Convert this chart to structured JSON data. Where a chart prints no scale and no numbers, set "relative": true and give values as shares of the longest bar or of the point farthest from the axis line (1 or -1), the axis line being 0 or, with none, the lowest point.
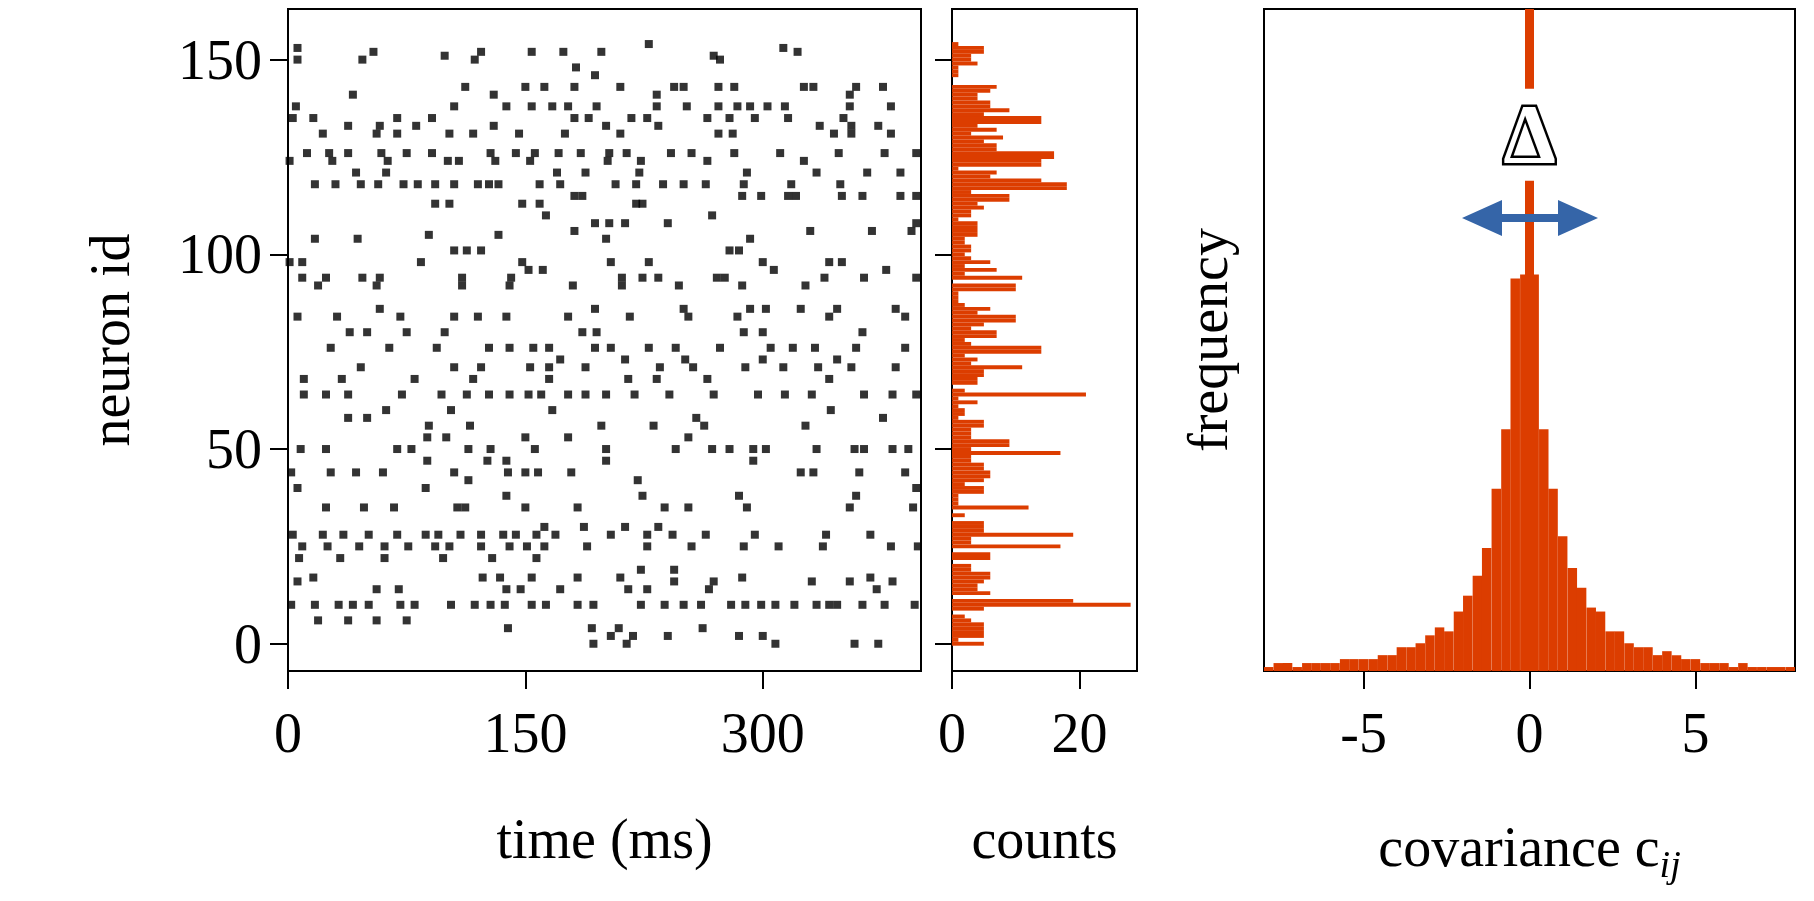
{
  "chart_data": [
    {
      "type": "scatter",
      "xlabel": "time (ms)",
      "ylabel": "neuron id",
      "xlim": [
        0,
        400
      ],
      "xticks": [
        0,
        150,
        300
      ],
      "ylim": [
        -7,
        163
      ],
      "yticks": [
        0,
        50,
        100,
        150
      ],
      "color": "#000000",
      "marker": "square",
      "series": [
        {
          "x": [
            228
          ],
          "values": [
            154
          ]
        },
        {
          "x": [
            6,
            313
          ],
          "values": [
            153,
            153
          ]
        },
        {
          "x": [
            54,
            122,
            154,
            174,
            198,
            322
          ],
          "values": [
            152,
            152,
            152,
            152,
            152,
            152
          ]
        },
        {
          "x": [
            99,
            269
          ],
          "values": [
            151,
            151
          ]
        },
        {
          "x": [
            6,
            47,
            118,
            273
          ],
          "values": [
            150,
            150,
            150,
            150
          ]
        },
        {
          "x": [
            182
          ],
          "values": [
            148
          ]
        },
        {
          "x": [
            194
          ],
          "values": [
            146
          ]
        },
        {
          "x": [
            112,
            150,
            162,
            181,
            210,
            244,
            250,
            272,
            282,
            326,
            332,
            359,
            376
          ],
          "values": [
            143,
            143,
            143,
            143,
            143,
            143,
            143,
            143,
            143,
            143,
            143,
            143,
            143
          ]
        },
        {
          "x": [
            41,
            130,
            233,
            355
          ],
          "values": [
            141,
            141,
            141,
            141
          ]
        },
        {
          "x": [
            5,
            105,
            138,
            154,
            167,
            177,
            195,
            233,
            252,
            272,
            284,
            292,
            303,
            314,
            355,
            381
          ],
          "values": [
            138,
            138,
            138,
            138,
            138,
            138,
            138,
            138,
            138,
            138,
            138,
            138,
            138,
            138,
            138,
            138
          ]
        },
        {
          "x": [
            3,
            16,
            69,
            91,
            181,
            190,
            217,
            227,
            265,
            279,
            295,
            316,
            351
          ],
          "values": [
            135,
            135,
            135,
            135,
            135,
            135,
            135,
            135,
            135,
            135,
            135,
            135,
            135
          ]
        },
        {
          "x": [
            38,
            58,
            81,
            130,
            201,
            234,
            336,
            356,
            373
          ],
          "values": [
            133,
            133,
            133,
            133,
            133,
            133,
            133,
            133,
            133
          ]
        },
        {
          "x": [
            22,
            56,
            69,
            102,
            117,
            146,
            175,
            210,
            272,
            281,
            345,
            356,
            381
          ],
          "values": [
            131,
            131,
            131,
            131,
            131,
            131,
            131,
            131,
            131,
            131,
            131,
            131,
            131
          ]
        },
        {
          "x": [
            12,
            26,
            38,
            59,
            75,
            91,
            128,
            144,
            156,
            171,
            185,
            203,
            214,
            242,
            255,
            282,
            311,
            348,
            377,
            397
          ],
          "values": [
            126,
            126,
            126,
            126,
            126,
            126,
            126,
            126,
            126,
            126,
            126,
            126,
            126,
            126,
            126,
            126,
            126,
            126,
            126,
            126
          ]
        },
        {
          "x": [
            1,
            28,
            63,
            101,
            108,
            131,
            153,
            202,
            223,
            265,
            326
          ],
          "values": [
            124,
            124,
            124,
            124,
            124,
            124,
            124,
            124,
            124,
            124,
            124
          ]
        },
        {
          "x": [
            43,
            62,
            170,
            188,
            222,
            290,
            334,
            366,
            387
          ],
          "values": [
            121,
            121,
            121,
            121,
            121,
            121,
            121,
            121,
            121
          ]
        },
        {
          "x": [
            17,
            30,
            46,
            57,
            73,
            82,
            93,
            105,
            120,
            127,
            133,
            159,
            172,
            207,
            220,
            237,
            250,
            264,
            288,
            318,
            349
          ],
          "values": [
            118,
            118,
            118,
            118,
            118,
            118,
            118,
            118,
            118,
            118,
            118,
            118,
            118,
            118,
            118,
            118,
            118,
            118,
            118,
            118,
            118
          ]
        },
        {
          "x": [
            181,
            186,
            287,
            299,
            316,
            321,
            350,
            363,
            387,
            397
          ],
          "values": [
            115,
            115,
            115,
            115,
            115,
            115,
            115,
            115,
            115,
            115
          ]
        },
        {
          "x": [
            93,
            102,
            148,
            159,
            220,
            224
          ],
          "values": [
            113,
            113,
            113,
            113,
            113,
            113
          ]
        },
        {
          "x": [
            163,
            268
          ],
          "values": [
            110,
            110
          ]
        },
        {
          "x": [
            194,
            203,
            213,
            240,
            397
          ],
          "values": [
            108,
            108,
            108,
            108,
            108
          ]
        },
        {
          "x": [
            181,
            330,
            369,
            394
          ],
          "values": [
            106,
            106,
            106,
            106
          ]
        },
        {
          "x": [
            89,
            133
          ],
          "values": [
            105,
            105
          ]
        },
        {
          "x": [
            17,
            44,
            201,
            292
          ],
          "values": [
            104,
            104,
            104,
            104
          ]
        },
        {
          "x": [
            105,
            113,
            122,
            279,
            285
          ],
          "values": [
            101,
            101,
            101,
            101,
            101
          ]
        },
        {
          "x": [
            1,
            9,
            84,
            148,
            204,
            228,
            300,
            342,
            350
          ],
          "values": [
            98,
            98,
            98,
            98,
            98,
            98,
            98,
            98,
            98
          ]
        },
        {
          "x": [
            152,
            161,
            307,
            378
          ],
          "values": [
            96,
            96,
            96,
            96
          ]
        },
        {
          "x": [
            9,
            24,
            47,
            58,
            110,
            141,
            211,
            224,
            234,
            271,
            276,
            339,
            364,
            397
          ],
          "values": [
            94,
            94,
            94,
            94,
            94,
            94,
            94,
            94,
            94,
            94,
            94,
            94,
            94,
            94
          ]
        },
        {
          "x": [
            19,
            56,
            110,
            140,
            180,
            211,
            247,
            287,
            327
          ],
          "values": [
            92,
            92,
            92,
            92,
            92,
            92,
            92,
            92,
            92
          ]
        },
        {
          "x": [
            58,
            194,
            250,
            292,
            302,
            324,
            347,
            384
          ],
          "values": [
            86,
            86,
            86,
            86,
            86,
            86,
            86,
            86
          ]
        },
        {
          "x": [
            6,
            31,
            71,
            105,
            120,
            138,
            177,
            216,
            253,
            284,
            342,
            390
          ],
          "values": [
            84,
            84,
            84,
            84,
            84,
            84,
            84,
            84,
            84,
            84,
            84,
            84
          ]
        },
        {
          "x": [
            39,
            50,
            75,
            99,
            186,
            195,
            288,
            300,
            363
          ],
          "values": [
            80,
            80,
            80,
            80,
            80,
            80,
            80,
            80,
            80
          ]
        },
        {
          "x": [
            27,
            64,
            94,
            127,
            140,
            155,
            165,
            194,
            204,
            228,
            245,
            273,
            305,
            319,
            333,
            359,
            390
          ],
          "values": [
            76,
            76,
            76,
            76,
            76,
            76,
            76,
            76,
            76,
            76,
            76,
            76,
            76,
            76,
            76,
            76,
            76
          ]
        },
        {
          "x": [
            172,
            213,
            251,
            300,
            347
          ],
          "values": [
            73,
            73,
            73,
            73,
            73
          ]
        },
        {
          "x": [
            46,
            105,
            122,
            153,
            165,
            188,
            235,
            256,
            289,
            313,
            335,
            356,
            384
          ],
          "values": [
            71,
            71,
            71,
            71,
            71,
            71,
            71,
            71,
            71,
            71,
            71,
            71,
            71
          ]
        },
        {
          "x": [
            10,
            34,
            80,
            117,
            165,
            215,
            233,
            265,
            342
          ],
          "values": [
            68,
            68,
            68,
            68,
            68,
            68,
            68,
            68,
            68
          ]
        },
        {
          "x": [
            10,
            24,
            38,
            72,
            97,
            113,
            127,
            140,
            152,
            160,
            177,
            188,
            201,
            219,
            241,
            269,
            297,
            314,
            331,
            364,
            382,
            397
          ],
          "values": [
            64,
            64,
            64,
            64,
            64,
            64,
            64,
            64,
            64,
            64,
            64,
            64,
            64,
            64,
            64,
            64,
            64,
            64,
            64,
            64,
            64,
            64
          ]
        },
        {
          "x": [
            62,
            103,
            167,
            343
          ],
          "values": [
            60,
            60,
            60,
            60
          ]
        },
        {
          "x": [
            38,
            50,
            258,
            376
          ],
          "values": [
            58,
            58,
            58,
            58
          ]
        },
        {
          "x": [
            89,
            115,
            198,
            231,
            263,
            327
          ],
          "values": [
            56,
            56,
            56,
            56,
            56,
            56
          ]
        },
        {
          "x": [
            88,
            100,
            150,
            177,
            253
          ],
          "values": [
            53,
            53,
            53,
            53,
            53
          ]
        },
        {
          "x": [
            8,
            24,
            69,
            78,
            114,
            128,
            156,
            201,
            245,
            268,
            279,
            294,
            302,
            334,
            358,
            364,
            382,
            392
          ],
          "values": [
            50,
            50,
            50,
            50,
            50,
            50,
            50,
            50,
            50,
            50,
            50,
            50,
            50,
            50,
            50,
            50,
            50,
            50
          ]
        },
        {
          "x": [
            88,
            126,
            138,
            201,
            294
          ],
          "values": [
            47,
            47,
            47,
            47,
            47
          ]
        },
        {
          "x": [
            2,
            27,
            43,
            60,
            105,
            139,
            150,
            158,
            179,
            324,
            332,
            361,
            390
          ],
          "values": [
            44,
            44,
            44,
            44,
            44,
            44,
            44,
            44,
            44,
            44,
            44,
            44,
            44
          ]
        },
        {
          "x": [
            114,
            221
          ],
          "values": [
            42,
            42
          ]
        },
        {
          "x": [
            6,
            87,
            397
          ],
          "values": [
            40,
            40,
            40
          ]
        },
        {
          "x": [
            138,
            224,
            285,
            359
          ],
          "values": [
            38,
            38,
            38,
            38
          ]
        },
        {
          "x": [
            24,
            48,
            67,
            107,
            112,
            150,
            183,
            238,
            253,
            290,
            355,
            395
          ],
          "values": [
            35,
            35,
            35,
            35,
            35,
            35,
            35,
            35,
            35,
            35,
            35,
            35
          ]
        },
        {
          "x": [
            162,
            187,
            213,
            234
          ],
          "values": [
            30,
            30,
            30,
            30
          ]
        },
        {
          "x": [
            3,
            22,
            35,
            51,
            69,
            87,
            95,
            109,
            122,
            136,
            144,
            157,
            169,
            204,
            227,
            243,
            264,
            295,
            340,
            368
          ],
          "values": [
            28,
            28,
            28,
            28,
            28,
            28,
            28,
            28,
            28,
            28,
            28,
            28,
            28,
            28,
            28,
            28,
            28,
            28,
            28,
            28
          ]
        },
        {
          "x": [
            9,
            25,
            45,
            61,
            76,
            93,
            102,
            122,
            140,
            151,
            162,
            189,
            227,
            255,
            288,
            310,
            338,
            381,
            398
          ],
          "values": [
            25,
            25,
            25,
            25,
            25,
            25,
            25,
            25,
            25,
            25,
            25,
            25,
            25,
            25,
            25,
            25,
            25,
            25,
            25
          ]
        },
        {
          "x": [
            7,
            33,
            61,
            98,
            129,
            157
          ],
          "values": [
            22,
            22,
            22,
            22,
            22,
            22
          ]
        },
        {
          "x": [
            223,
            244
          ],
          "values": [
            19,
            19
          ]
        },
        {
          "x": [
            16,
            123,
            134,
            154,
            183,
            210,
            287,
            368
          ],
          "values": [
            17,
            17,
            17,
            17,
            17,
            17,
            17,
            17
          ]
        },
        {
          "x": [
            6,
            244,
            269,
            331,
            355,
            382
          ],
          "values": [
            16,
            16,
            16,
            16,
            16,
            16
          ]
        },
        {
          "x": [
            56,
            70,
            138,
            147,
            172,
            215,
            227,
            266,
            372
          ],
          "values": [
            14,
            14,
            14,
            14,
            14,
            14,
            14,
            14,
            14
          ]
        },
        {
          "x": [
            2,
            17,
            32,
            41,
            51,
            71,
            80,
            103,
            118,
            128,
            137,
            154,
            163,
            183,
            193,
            223,
            238,
            250,
            261,
            280,
            289,
            299,
            308,
            320,
            334,
            342,
            347,
            363,
            377,
            396
          ],
          "values": [
            10,
            10,
            10,
            10,
            10,
            10,
            10,
            10,
            10,
            10,
            10,
            10,
            10,
            10,
            10,
            10,
            10,
            10,
            10,
            10,
            10,
            10,
            10,
            10,
            10,
            10,
            10,
            10,
            10,
            10
          ]
        },
        {
          "x": [
            19,
            38,
            56,
            75
          ],
          "values": [
            6,
            6,
            6,
            6
          ]
        },
        {
          "x": [
            139,
            192,
            209,
            262
          ],
          "values": [
            4,
            4,
            4,
            4
          ]
        },
        {
          "x": [
            204,
            218,
            240,
            285,
            300
          ],
          "values": [
            2,
            2,
            2,
            2,
            2
          ]
        },
        {
          "x": [
            193,
            214,
            308,
            358,
            373
          ],
          "values": [
            0,
            0,
            0,
            0,
            0
          ]
        }
      ]
    },
    {
      "type": "bar",
      "orientation": "horizontal",
      "xlabel": "counts",
      "xlim": [
        0,
        29
      ],
      "xticks": [
        0,
        20
      ],
      "ylim": [
        -7,
        163
      ],
      "yticks": [
        0,
        50,
        100,
        150
      ],
      "tick_labels": "x",
      "color": "#dc3d00",
      "x": [
        0,
        1,
        2,
        3,
        4,
        5,
        6,
        7,
        8,
        9,
        10,
        11,
        12,
        13,
        14,
        15,
        16,
        17,
        18,
        19,
        20,
        21,
        22,
        23,
        24,
        25,
        26,
        27,
        28,
        29,
        30,
        31,
        32,
        33,
        34,
        35,
        36,
        37,
        38,
        39,
        40,
        41,
        42,
        43,
        44,
        45,
        46,
        47,
        48,
        49,
        50,
        51,
        52,
        53,
        54,
        55,
        56,
        57,
        58,
        59,
        60,
        61,
        62,
        63,
        64,
        65,
        66,
        67,
        68,
        69,
        70,
        71,
        72,
        73,
        74,
        75,
        76,
        77,
        78,
        79,
        80,
        81,
        82,
        83,
        84,
        85,
        86,
        87,
        88,
        89,
        90,
        91,
        92,
        93,
        94,
        95,
        96,
        97,
        98,
        99,
        100,
        101,
        102,
        103,
        104,
        105,
        106,
        107,
        108,
        109,
        110,
        111,
        112,
        113,
        114,
        115,
        116,
        117,
        118,
        119,
        120,
        121,
        122,
        123,
        124,
        125,
        126,
        127,
        128,
        129,
        130,
        131,
        132,
        133,
        134,
        135,
        136,
        137,
        138,
        139,
        140,
        141,
        142,
        143,
        144,
        145,
        146,
        147,
        148,
        149,
        150,
        151,
        152,
        153,
        154
      ],
      "values": [
        5,
        1,
        5,
        5,
        5,
        5,
        3,
        2,
        0,
        5,
        28,
        19,
        0,
        6,
        4,
        4,
        5,
        6,
        6,
        3,
        3,
        0,
        6,
        6,
        0,
        17,
        3,
        3,
        19,
        5,
        5,
        5,
        0,
        2,
        0,
        12,
        1,
        1,
        1,
        5,
        5,
        2,
        5,
        6,
        6,
        5,
        5,
        3,
        3,
        17,
        3,
        9,
        9,
        3,
        3,
        3,
        5,
        5,
        1,
        2,
        2,
        1,
        4,
        1,
        21,
        2,
        0,
        4,
        4,
        5,
        5,
        11,
        3,
        4,
        2,
        14,
        14,
        3,
        2,
        7,
        7,
        3,
        5,
        10,
        10,
        4,
        6,
        2,
        1,
        1,
        1,
        10,
        10,
        0,
        11,
        2,
        7,
        2,
        6,
        3,
        2,
        3,
        3,
        2,
        2,
        4,
        4,
        4,
        4,
        1,
        3,
        3,
        5,
        4,
        9,
        9,
        3,
        18,
        18,
        14,
        6,
        7,
        1,
        14,
        14,
        16,
        16,
        7,
        7,
        5,
        8,
        3,
        7,
        4,
        14,
        14,
        5,
        9,
        6,
        6,
        4,
        4,
        6,
        7,
        0,
        0,
        1,
        1,
        1,
        4,
        3,
        3,
        5,
        5,
        1
      ]
    },
    {
      "type": "bar",
      "xlabel": "covariance c$_{ij}$",
      "ylabel": "frequency",
      "relative": true,
      "xlim": [
        -8,
        8
      ],
      "xticks": [
        -5,
        0,
        5
      ],
      "color": "#dc3d00",
      "x": [
        -7.86,
        -7.57,
        -7.29,
        -7,
        -6.71,
        -6.43,
        -6.14,
        -5.86,
        -5.57,
        -5.29,
        -5,
        -4.71,
        -4.43,
        -4.14,
        -3.86,
        -3.57,
        -3.29,
        -3,
        -2.71,
        -2.43,
        -2.14,
        -1.86,
        -1.57,
        -1.29,
        -1,
        -0.71,
        -0.43,
        -0.14,
        0.14,
        0.43,
        0.71,
        1,
        1.29,
        1.57,
        1.86,
        2.14,
        2.43,
        2.71,
        3,
        3.29,
        3.57,
        3.86,
        4.14,
        4.43,
        4.71,
        5,
        5.29,
        5.57,
        5.86,
        6.14,
        6.43,
        6.71,
        7,
        7.29,
        7.57,
        7.86
      ],
      "values": [
        0.01,
        0.02,
        0.02,
        0.01,
        0.02,
        0.02,
        0.02,
        0.02,
        0.03,
        0.03,
        0.03,
        0.03,
        0.04,
        0.04,
        0.06,
        0.06,
        0.07,
        0.09,
        0.11,
        0.1,
        0.15,
        0.19,
        0.24,
        0.31,
        0.46,
        0.61,
        0.99,
        1,
        1,
        0.61,
        0.46,
        0.34,
        0.26,
        0.21,
        0.16,
        0.15,
        0.1,
        0.1,
        0.07,
        0.06,
        0.06,
        0.04,
        0.05,
        0.04,
        0.03,
        0.03,
        0.02,
        0.02,
        0.02,
        0.01,
        0.02,
        0.01,
        0.01,
        0.01,
        0.01,
        0.01
      ],
      "ref_lines": [
        {
          "axis": "x",
          "value": 0,
          "color": "#dc3d00"
        }
      ],
      "annotations": [
        "Δ"
      ]
    }
  ]
}
